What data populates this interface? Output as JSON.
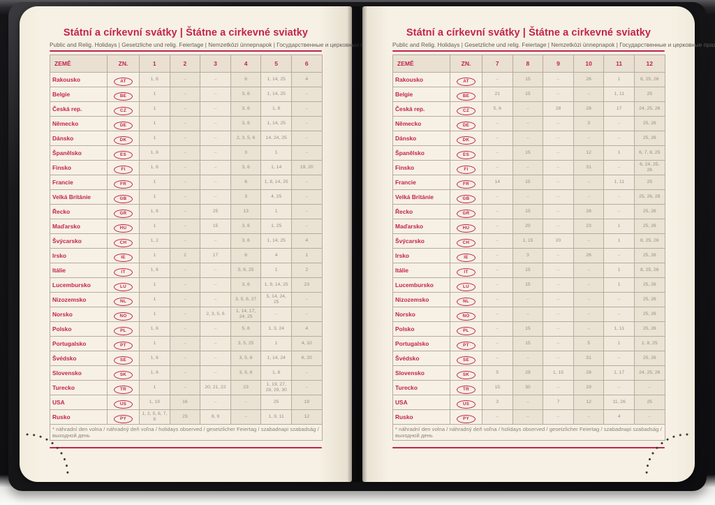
{
  "page": {
    "title": "Státní a církevní svátky | Štátne a cirkevné sviatky",
    "subtitle": "Public and Relig. Holidays | Gesetzliche und relig. Feiertage | Nemzetközi ünnepnapok | Государственные и церковные праздники",
    "footnote": "* náhradní den volna / náhradný deň voľna / holidays observed / gesetzlicher Feiertag / szabadnapi szabadság / выходной день"
  },
  "colors": {
    "accent_red": "#c32350",
    "page_cream": "#f5f0e2",
    "header_beige": "#e9e0d1",
    "cell_tint": "#eae2d3",
    "border": "#b6ab9e",
    "number_gray": "#978e83",
    "cover_black": "#121214"
  },
  "table": {
    "col_country": "ZEMĚ",
    "col_code": "ZN.",
    "left_months": [
      "1",
      "2",
      "3",
      "4",
      "5",
      "6"
    ],
    "right_months": [
      "7",
      "8",
      "9",
      "10",
      "11",
      "12"
    ],
    "countries": [
      {
        "name": "Rakousko",
        "code": "AT",
        "left": [
          "1, 6",
          "–",
          "–",
          "6",
          "1, 14, 25",
          "4"
        ],
        "right": [
          "–",
          "15",
          "–",
          "26",
          "1",
          "8, 25, 26"
        ]
      },
      {
        "name": "Belgie",
        "code": "BE",
        "left": [
          "1",
          "–",
          "–",
          "3, 6",
          "1, 14, 25",
          "–"
        ],
        "right": [
          "21",
          "15",
          "–",
          "–",
          "1, 11",
          "25"
        ]
      },
      {
        "name": "Česká rep.",
        "code": "CZ",
        "left": [
          "1",
          "–",
          "–",
          "3, 6",
          "1, 8",
          "–"
        ],
        "right": [
          "5, 6",
          "–",
          "28",
          "28",
          "17",
          "24, 25, 26"
        ]
      },
      {
        "name": "Německo",
        "code": "DE",
        "left": [
          "1",
          "–",
          "–",
          "3, 6",
          "1, 14, 25",
          "–"
        ],
        "right": [
          "–",
          "–",
          "–",
          "3",
          "–",
          "25, 26"
        ]
      },
      {
        "name": "Dánsko",
        "code": "DK",
        "left": [
          "1",
          "–",
          "–",
          "2, 3, 5, 6",
          "14, 24, 25",
          "–"
        ],
        "right": [
          "–",
          "–",
          "–",
          "–",
          "–",
          "25, 26"
        ]
      },
      {
        "name": "Španělsko",
        "code": "ES",
        "left": [
          "1, 6",
          "–",
          "–",
          "3",
          "1",
          "–"
        ],
        "right": [
          "–",
          "15",
          "–",
          "12",
          "1",
          "6, 7, 8, 25"
        ]
      },
      {
        "name": "Finsko",
        "code": "FI",
        "left": [
          "1, 6",
          "–",
          "–",
          "3, 6",
          "1, 14",
          "19, 20"
        ],
        "right": [
          "–",
          "–",
          "–",
          "31",
          "–",
          "6, 24, 25, 26"
        ]
      },
      {
        "name": "Francie",
        "code": "FR",
        "left": [
          "1",
          "–",
          "–",
          "6",
          "1, 8, 14, 25",
          "–"
        ],
        "right": [
          "14",
          "15",
          "–",
          "–",
          "1, 11",
          "25"
        ]
      },
      {
        "name": "Velká Británie",
        "code": "GB",
        "left": [
          "1",
          "–",
          "–",
          "3",
          "4, 25",
          "–"
        ],
        "right": [
          "–",
          "–",
          "–",
          "–",
          "–",
          "25, 26, 28"
        ]
      },
      {
        "name": "Řecko",
        "code": "GR",
        "left": [
          "1, 6",
          "–",
          "25",
          "13",
          "1",
          "–"
        ],
        "right": [
          "–",
          "15",
          "–",
          "28",
          "–",
          "25, 26"
        ]
      },
      {
        "name": "Maďarsko",
        "code": "HU",
        "left": [
          "1",
          "–",
          "15",
          "3, 6",
          "1, 25",
          "–"
        ],
        "right": [
          "–",
          "20",
          "–",
          "23",
          "1",
          "25, 26"
        ]
      },
      {
        "name": "Švýcarsko",
        "code": "CH",
        "left": [
          "1, 2",
          "–",
          "–",
          "3, 6",
          "1, 14, 25",
          "4"
        ],
        "right": [
          "–",
          "1, 15",
          "20",
          "–",
          "1",
          "8, 25, 26"
        ]
      },
      {
        "name": "Irsko",
        "code": "IE",
        "left": [
          "1",
          "2",
          "17",
          "6",
          "4",
          "1"
        ],
        "right": [
          "–",
          "3",
          "–",
          "26",
          "–",
          "25, 26"
        ]
      },
      {
        "name": "Itálie",
        "code": "IT",
        "left": [
          "1, 6",
          "–",
          "–",
          "5, 6, 25",
          "1",
          "2"
        ],
        "right": [
          "–",
          "15",
          "–",
          "–",
          "1",
          "8, 25, 26"
        ]
      },
      {
        "name": "Lucembursko",
        "code": "LU",
        "left": [
          "1",
          "–",
          "–",
          "3, 6",
          "1, 9, 14, 25",
          "23"
        ],
        "right": [
          "–",
          "15",
          "–",
          "–",
          "1",
          "25, 26"
        ]
      },
      {
        "name": "Nizozemsko",
        "code": "NL",
        "left": [
          "1",
          "–",
          "–",
          "3, 5, 6, 27",
          "5, 14, 24, 25",
          "–"
        ],
        "right": [
          "–",
          "–",
          "–",
          "–",
          "–",
          "25, 26"
        ]
      },
      {
        "name": "Norsko",
        "code": "NO",
        "left": [
          "1",
          "–",
          "2, 3, 5, 6",
          "1, 14, 17, 24, 25",
          "–",
          "–"
        ],
        "right": [
          "–",
          "–",
          "–",
          "–",
          "–",
          "25, 26"
        ]
      },
      {
        "name": "Polsko",
        "code": "PL",
        "left": [
          "1, 6",
          "–",
          "–",
          "5, 6",
          "1, 3, 24",
          "4"
        ],
        "right": [
          "–",
          "15",
          "–",
          "–",
          "1, 11",
          "25, 26"
        ]
      },
      {
        "name": "Portugalsko",
        "code": "PT",
        "left": [
          "1",
          "–",
          "–",
          "3, 5, 25",
          "1",
          "4, 10"
        ],
        "right": [
          "–",
          "15",
          "–",
          "5",
          "1",
          "1, 8, 25"
        ]
      },
      {
        "name": "Švédsko",
        "code": "SE",
        "left": [
          "1, 6",
          "–",
          "–",
          "3, 5, 6",
          "1, 14, 24",
          "6, 20"
        ],
        "right": [
          "–",
          "–",
          "–",
          "31",
          "–",
          "25, 26"
        ]
      },
      {
        "name": "Slovensko",
        "code": "SK",
        "left": [
          "1, 6",
          "–",
          "–",
          "3, 5, 6",
          "1, 8",
          "–"
        ],
        "right": [
          "5",
          "29",
          "1, 15",
          "28",
          "1, 17",
          "24, 25, 26"
        ]
      },
      {
        "name": "Turecko",
        "code": "TR",
        "left": [
          "1",
          "–",
          "20, 21, 22",
          "23",
          "1, 19, 27, 28, 29, 30",
          "–"
        ],
        "right": [
          "15",
          "30",
          "–",
          "29",
          "–",
          "–"
        ]
      },
      {
        "name": "USA",
        "code": "US",
        "left": [
          "1, 19",
          "16",
          "–",
          "–",
          "25",
          "19"
        ],
        "right": [
          "3",
          "–",
          "7",
          "12",
          "11, 26",
          "25"
        ]
      },
      {
        "name": "Rusko",
        "code": "PY",
        "left": [
          "1, 2, 5, 6, 7, 8",
          "23",
          "8, 9",
          "–",
          "1, 9, 11",
          "12"
        ],
        "right": [
          "–",
          "–",
          "–",
          "–",
          "4",
          "–"
        ]
      }
    ]
  }
}
